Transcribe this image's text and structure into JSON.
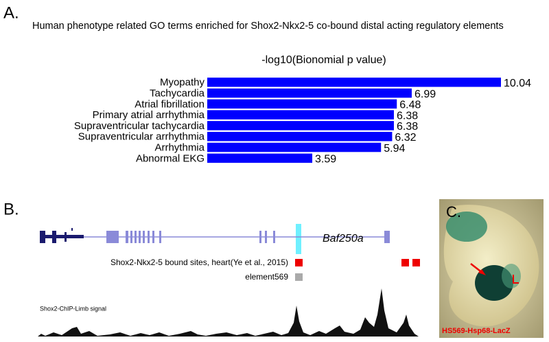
{
  "chart_data": {
    "type": "barh",
    "panel_label": "A.",
    "title": "Human phenotype related GO terms enriched for Shox2-Nkx2-5 co-bound distal acting regulatory elements",
    "xlabel": "-log10(Bionomial p value)",
    "categories": [
      "Myopathy",
      "Tachycardia",
      "Atrial fibrillation",
      "Primary atrial arrhythmia",
      "Supraventricular tachycardia",
      "Supraventricular arrhythmia",
      "Arrhythmia",
      "Abnormal EKG"
    ],
    "values": [
      10.04,
      6.99,
      6.48,
      6.38,
      6.38,
      6.32,
      5.94,
      3.59
    ],
    "color": "#0000ff",
    "xlim": [
      0,
      10.04
    ]
  },
  "panel_b": {
    "label": "B.",
    "gene": "Baf250a",
    "tracks": [
      "Shox2-Nkx2-5 bound sites, heart(Ye et al., 2015)",
      "element569"
    ],
    "signal_label": "Shox2-ChIP-Limb signal"
  },
  "panel_c": {
    "label": "C.",
    "caption": "HS569-Hsp68-LacZ"
  }
}
